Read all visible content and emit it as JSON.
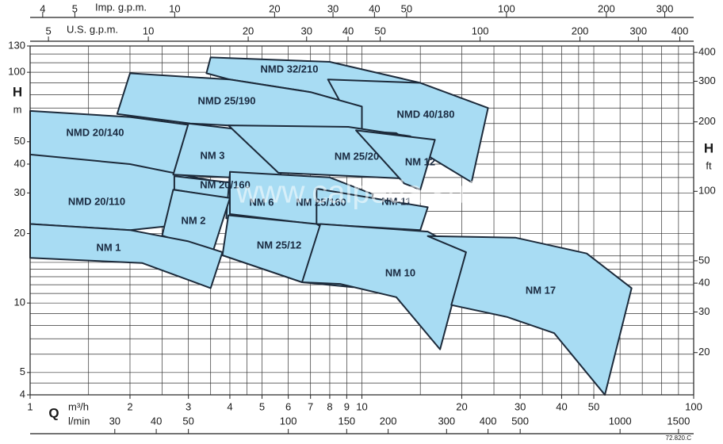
{
  "chart_data": {
    "type": "region",
    "xscale": "log",
    "yscale": "log",
    "xlim": [
      1,
      100
    ],
    "ylim": [
      4,
      130
    ],
    "xlabel": "Q",
    "xunit": "m³/h",
    "ylabel": "H",
    "yunit": "m",
    "xticks": [
      1,
      2,
      3,
      4,
      5,
      6,
      7,
      8,
      9,
      10,
      20,
      30,
      40,
      50,
      100
    ],
    "yticks": [
      4,
      5,
      10,
      20,
      30,
      40,
      50,
      100,
      130
    ],
    "xgrid": [
      1,
      1.5,
      2,
      2.5,
      3,
      3.5,
      4,
      4.5,
      5,
      6,
      7,
      8,
      9,
      10,
      15,
      20,
      25,
      30,
      35,
      40,
      45,
      50,
      60,
      70,
      80,
      90,
      100
    ],
    "ygrid": [
      4,
      4.5,
      5,
      6,
      7,
      8,
      9,
      10,
      11,
      12,
      13,
      14,
      15,
      16,
      18,
      20,
      25,
      30,
      35,
      40,
      45,
      50,
      60,
      70,
      80,
      90,
      100,
      110,
      120,
      130
    ],
    "secondary_axes": [
      {
        "position": "top",
        "label": "Imp. g.p.m.",
        "lim": [
          3.666,
          366.6
        ],
        "ticks": [
          4,
          5,
          10,
          20,
          30,
          40,
          50,
          100,
          200,
          300
        ]
      },
      {
        "position": "top",
        "label": "U.S. g.p.m.",
        "lim": [
          4.403,
          440.3
        ],
        "ticks": [
          5,
          10,
          20,
          30,
          40,
          50,
          100,
          200,
          300,
          400
        ]
      },
      {
        "position": "bottom",
        "label": "l/min",
        "lim": [
          16.67,
          1666.7
        ],
        "ticks": [
          30,
          40,
          50,
          100,
          150,
          200,
          300,
          400,
          500,
          1000,
          1500
        ]
      },
      {
        "position": "right",
        "label": "H",
        "unit": "ft",
        "lim": [
          13.12,
          426.5
        ],
        "ticks": [
          20,
          30,
          40,
          50,
          100,
          200,
          300,
          400
        ]
      }
    ],
    "region_color": "#a8dcf3",
    "edge_color": "#1c2a3a",
    "series": [
      {
        "name": "NMD 32/210",
        "x": [
          3.5,
          8,
          15,
          10,
          7,
          4,
          3.4
        ],
        "y": [
          116,
          111,
          90,
          71,
          82,
          93,
          99
        ]
      },
      {
        "name": "NMD 40/180",
        "x": [
          7.9,
          15,
          24,
          21.4,
          16.3,
          12.7,
          9.6
        ],
        "y": [
          93,
          90,
          70,
          33.4,
          42.3,
          54.5,
          55.8
        ]
      },
      {
        "name": "NMD 25/190",
        "x": [
          2,
          4,
          7,
          10,
          10,
          6,
          3.04,
          1.83
        ],
        "y": [
          99,
          93,
          82,
          71,
          56,
          57,
          60,
          66
        ]
      },
      {
        "name": "NMD 20/140",
        "x": [
          1,
          2,
          3.04,
          2.7,
          2,
          1
        ],
        "y": [
          68,
          64,
          59,
          26,
          31,
          44
        ]
      },
      {
        "name": "NMD 20/110",
        "x": [
          1,
          2,
          3.5,
          3,
          2,
          1
        ],
        "y": [
          44,
          40,
          34,
          22,
          20.7,
          22
        ]
      },
      {
        "name": "NM 3",
        "x": [
          3,
          4.5,
          6,
          5.6,
          4,
          2.7
        ],
        "y": [
          60,
          56,
          49,
          33,
          35,
          36
        ]
      },
      {
        "name": "NM 25/20",
        "x": [
          3.96,
          9.1,
          14,
          13,
          5.6
        ],
        "y": [
          58.9,
          58,
          52.8,
          34.7,
          36.7
        ]
      },
      {
        "name": "NM 12",
        "x": [
          9.6,
          16.6,
          15,
          13.4
        ],
        "y": [
          56,
          51,
          31,
          33
        ]
      },
      {
        "name": "NM 20/160",
        "x": [
          2.72,
          4.2,
          4.2,
          2.72
        ],
        "y": [
          35.5,
          33,
          28,
          31
        ]
      },
      {
        "name": "NM 6",
        "x": [
          4,
          5.7,
          5.4,
          3.9
        ],
        "y": [
          36.7,
          33,
          21.6,
          23.3
        ]
      },
      {
        "name": "NM 25/160",
        "x": [
          4,
          8,
          10.8,
          10.2,
          4
        ],
        "y": [
          37,
          35,
          29.6,
          20.7,
          24.3
        ]
      },
      {
        "name": "NM 11",
        "x": [
          7.3,
          12.7,
          15.8,
          15,
          7.3
        ],
        "y": [
          31.3,
          27.4,
          26,
          20.7,
          22
        ]
      },
      {
        "name": "NM 2",
        "x": [
          2.7,
          4,
          3.55,
          2.5
        ],
        "y": [
          31,
          28.5,
          16.6,
          19.6
        ]
      },
      {
        "name": "NM 1",
        "x": [
          1,
          2,
          3,
          3.8,
          3.5,
          2.18,
          1
        ],
        "y": [
          22,
          20.7,
          18.5,
          16.6,
          11.6,
          14.9,
          15.7
        ]
      },
      {
        "name": "NM 25/12",
        "x": [
          3.96,
          7.3,
          9.9,
          9.4,
          6.6,
          3.8
        ],
        "y": [
          24,
          22,
          17,
          11.7,
          12.3,
          16.1
        ]
      },
      {
        "name": "NM 10",
        "x": [
          7.5,
          15.8,
          20.6,
          17.2,
          12.7,
          8.6,
          6.6
        ],
        "y": [
          22,
          20.4,
          16.6,
          6.3,
          10.6,
          12.1,
          12.3
        ]
      },
      {
        "name": "NM 17",
        "x": [
          15.8,
          29,
          47.6,
          65,
          54,
          38,
          27.4,
          18.6,
          20.6
        ],
        "y": [
          19.5,
          19.2,
          16.4,
          11.6,
          4,
          7.4,
          8.7,
          9.8,
          16.6
        ]
      }
    ],
    "watermark": "www.calpeda.su*",
    "footnote": "72.820.C"
  }
}
